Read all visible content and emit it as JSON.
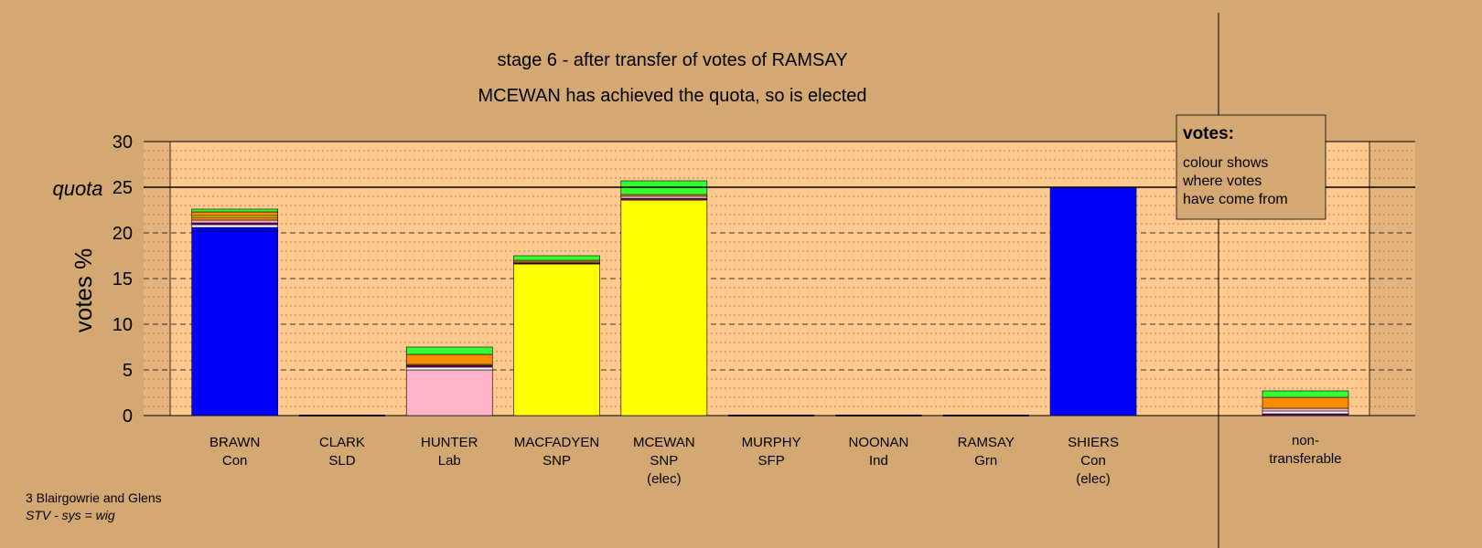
{
  "chart_data": {
    "type": "bar",
    "title": "stage 6 - after transfer of votes of RAMSAY",
    "subtitle": "MCEWAN has achieved the quota, so is elected",
    "ylabel": "votes %",
    "ylim": [
      0,
      30
    ],
    "yticks": [
      0,
      5,
      10,
      15,
      20,
      25,
      30
    ],
    "quota_label": "quota",
    "quota_value": 25,
    "grid": true,
    "colors": {
      "background": "#d4a872",
      "plot_area": "#ffc98f",
      "plot_side_shade": "#d3a670",
      "quota_line": "#000000",
      "con": "#0000ff",
      "lab": "#ffb3c6",
      "snp": "#ffff00",
      "sld": "#ff8c00",
      "grn": "#33ff33",
      "ind": "#ffffff",
      "sfp": "#800080"
    },
    "candidates": [
      {
        "name": "BRAWN",
        "party": "Con",
        "note": "",
        "segments": [
          {
            "source": "Con",
            "color": "#0000ff",
            "value": 20.2
          },
          {
            "source": "Con",
            "color": "#0000ff",
            "value": 0.4
          },
          {
            "source": "Ind",
            "color": "#ffffff",
            "value": 0.3
          },
          {
            "source": "SFP",
            "color": "#800080",
            "value": 0.2
          },
          {
            "source": "Lab",
            "color": "#ffb3c6",
            "value": 0.3
          },
          {
            "source": "SLD",
            "color": "#ff8c00",
            "value": 0.3
          },
          {
            "source": "SNP",
            "color": "#ffff00",
            "value": 0.2
          },
          {
            "source": "SLD",
            "color": "#ff8c00",
            "value": 0.4
          },
          {
            "source": "Grn",
            "color": "#33ff33",
            "value": 0.3
          }
        ]
      },
      {
        "name": "CLARK",
        "party": "SLD",
        "note": "",
        "segments": []
      },
      {
        "name": "HUNTER",
        "party": "Lab",
        "note": "",
        "segments": [
          {
            "source": "Lab",
            "color": "#ffb3c6",
            "value": 5.0
          },
          {
            "source": "Ind",
            "color": "#ffffff",
            "value": 0.3
          },
          {
            "source": "SFP",
            "color": "#800080",
            "value": 0.2
          },
          {
            "source": "SNP",
            "color": "#ffff00",
            "value": 0.1
          },
          {
            "source": "SLD",
            "color": "#ff8c00",
            "value": 1.1
          },
          {
            "source": "Grn",
            "color": "#33ff33",
            "value": 0.8
          }
        ]
      },
      {
        "name": "MACFADYEN",
        "party": "SNP",
        "note": "",
        "segments": [
          {
            "source": "SNP",
            "color": "#ffff00",
            "value": 16.6
          },
          {
            "source": "SFP",
            "color": "#800080",
            "value": 0.1
          },
          {
            "source": "Ind",
            "color": "#ffffff",
            "value": 0.1
          },
          {
            "source": "SLD",
            "color": "#ff8c00",
            "value": 0.2
          },
          {
            "source": "Grn",
            "color": "#33ff33",
            "value": 0.5
          }
        ]
      },
      {
        "name": "MCEWAN",
        "party": "SNP",
        "note": "(elec)",
        "segments": [
          {
            "source": "SNP",
            "color": "#ffff00",
            "value": 23.6
          },
          {
            "source": "SFP",
            "color": "#800080",
            "value": 0.2
          },
          {
            "source": "Ind",
            "color": "#ffffff",
            "value": 0.2
          },
          {
            "source": "SLD",
            "color": "#ff8c00",
            "value": 0.2
          },
          {
            "source": "Grn",
            "color": "#33ff33",
            "value": 1.5
          }
        ]
      },
      {
        "name": "MURPHY",
        "party": "SFP",
        "note": "",
        "segments": []
      },
      {
        "name": "NOONAN",
        "party": "Ind",
        "note": "",
        "segments": []
      },
      {
        "name": "RAMSAY",
        "party": "Grn",
        "note": "",
        "segments": []
      },
      {
        "name": "SHIERS",
        "party": "Con",
        "note": "(elec)",
        "segments": [
          {
            "source": "Con",
            "color": "#0000ff",
            "value": 25.0
          }
        ]
      }
    ],
    "non_transferable": {
      "label_line1": "non-",
      "label_line2": "transferable",
      "segments": [
        {
          "source": "SFP",
          "color": "#800080",
          "value": 0.2
        },
        {
          "source": "Ind",
          "color": "#ffffff",
          "value": 0.3
        },
        {
          "source": "Lab",
          "color": "#ffb3c6",
          "value": 0.3
        },
        {
          "source": "SLD",
          "color": "#ff8c00",
          "value": 1.2
        },
        {
          "source": "Grn",
          "color": "#33ff33",
          "value": 0.7
        }
      ]
    },
    "legend": {
      "placement": "top-right",
      "title": "votes:",
      "lines": [
        "colour shows",
        "where votes",
        "have come from"
      ]
    }
  },
  "footer": {
    "line1": "3 Blairgowrie and Glens",
    "line2": "STV - sys = wig"
  }
}
